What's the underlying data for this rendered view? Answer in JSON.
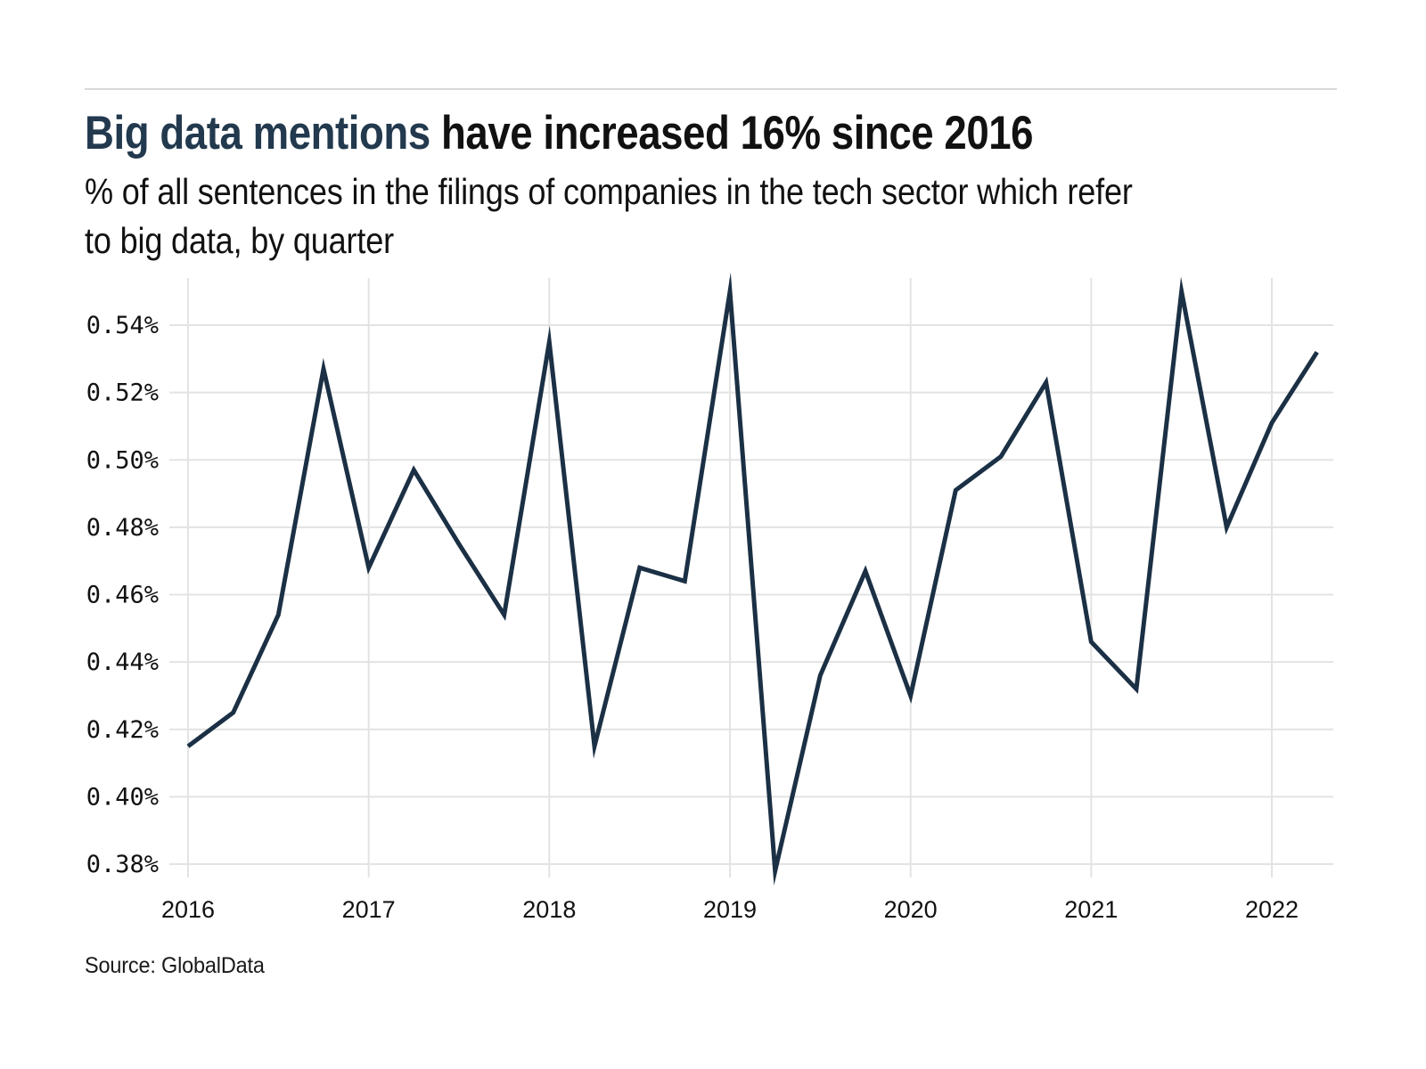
{
  "header": {
    "title_highlight": "Big data mentions",
    "title_rest": " have increased 16% since 2016",
    "subtitle": "% of all sentences in the filings of companies in the tech sector which refer\nto big data, by quarter"
  },
  "footer": {
    "source": "Source: GlobalData"
  },
  "colors": {
    "line": "#1b3044",
    "title_accent": "#22394e",
    "text": "#111111",
    "grid": "#e3e3e3",
    "divider": "#d9d9d9",
    "background": "#ffffff"
  },
  "chart_data": {
    "type": "line",
    "title": "Big data mentions have increased 16% since 2016",
    "subtitle": "% of all sentences in the filings of companies in the tech sector which refer to big data, by quarter",
    "source": "Source: GlobalData",
    "x": [
      "2016 Q1",
      "2016 Q2",
      "2016 Q3",
      "2016 Q4",
      "2017 Q1",
      "2017 Q2",
      "2017 Q3",
      "2017 Q4",
      "2018 Q1",
      "2018 Q2",
      "2018 Q3",
      "2018 Q4",
      "2019 Q1",
      "2019 Q2",
      "2019 Q3",
      "2019 Q4",
      "2020 Q1",
      "2020 Q2",
      "2020 Q3",
      "2020 Q4",
      "2021 Q1",
      "2021 Q2",
      "2021 Q3",
      "2021 Q4",
      "2022 Q1",
      "2022 Q2"
    ],
    "values": [
      0.415,
      0.425,
      0.454,
      0.527,
      0.468,
      0.497,
      0.475,
      0.454,
      0.535,
      0.415,
      0.468,
      0.464,
      0.55,
      0.378,
      0.436,
      0.467,
      0.43,
      0.491,
      0.501,
      0.523,
      0.446,
      0.432,
      0.55,
      0.48,
      0.511,
      0.532
    ],
    "x_tick_labels": [
      "2016",
      "2017",
      "2018",
      "2019",
      "2020",
      "2021",
      "2022"
    ],
    "y_ticks": [
      0.38,
      0.4,
      0.42,
      0.44,
      0.46,
      0.48,
      0.5,
      0.52,
      0.54
    ],
    "y_tick_labels": [
      "0.38%",
      "0.40%",
      "0.42%",
      "0.44%",
      "0.46%",
      "0.48%",
      "0.50%",
      "0.52%",
      "0.54%"
    ],
    "ylabel": "",
    "xlabel": "",
    "ylim": [
      0.372,
      0.556
    ],
    "grid": true,
    "legend": false
  }
}
